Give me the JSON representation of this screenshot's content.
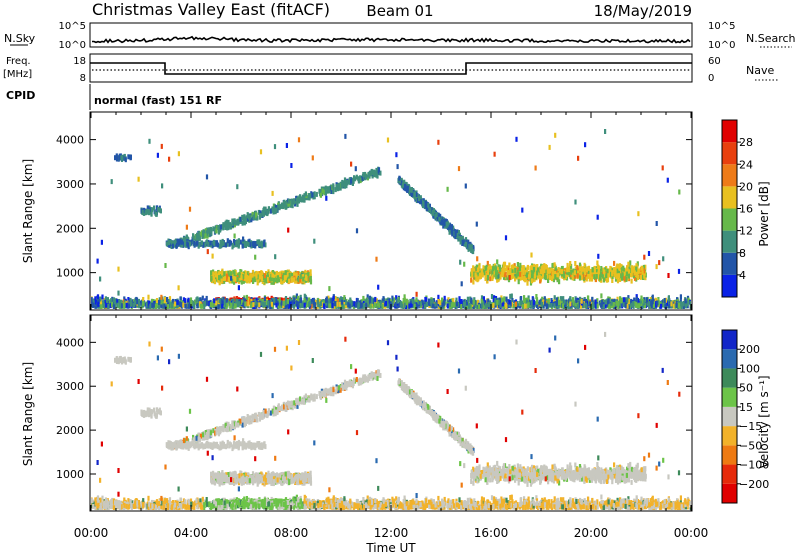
{
  "header": {
    "title": "Christmas Valley East (fitACF)",
    "beam": "Beam 01",
    "date": "18/May/2019"
  },
  "nsky_panel": {
    "left_label": "N.Sky",
    "left_ticks": [
      "10^5",
      "10^0"
    ],
    "right_ticks": [
      "10^5",
      "10^0"
    ],
    "right_label": "N.Search"
  },
  "freq_panel": {
    "left_label_1": "Freq.",
    "left_label_2": "[MHz]",
    "left_ticks": [
      "18",
      "8"
    ],
    "right_ticks": [
      "60",
      "0"
    ],
    "right_label": "Nave",
    "cpid_label": "CPID",
    "cpid_text": "normal (fast) 151 RF"
  },
  "colors": {
    "power": [
      "#0a22e6",
      "#2255a8",
      "#3f8f7c",
      "#66b84a",
      "#e8c020",
      "#ee7b18",
      "#e8400e",
      "#e00000"
    ],
    "velocity": [
      "#1226c8",
      "#2a6ab0",
      "#3d8a5a",
      "#6cc448",
      "#c8c8c0",
      "#f2b22a",
      "#ee7a12",
      "#e62a0a",
      "#e00000"
    ]
  },
  "chart_data": [
    {
      "type": "heatmap",
      "name": "power",
      "ylabel": "Slant Range [km]",
      "yticks": [
        "4000",
        "3000",
        "2000",
        "1000"
      ],
      "ylim": [
        180,
        4600
      ],
      "xlim_hours": [
        0,
        24
      ],
      "colorbar": {
        "label": "Power [dB]",
        "ticks": [
          "28",
          "24",
          "20",
          "16",
          "12",
          "8",
          "4"
        ],
        "range": [
          0,
          32
        ]
      },
      "features": [
        {
          "name": "night-band",
          "t_start": 4.8,
          "t_end": 8.8,
          "range_center": 900,
          "range_width": 150,
          "value": 17
        },
        {
          "name": "night-band",
          "t_start": 5.0,
          "t_end": 8.0,
          "range_center": 350,
          "range_width": 80,
          "value": 28
        },
        {
          "name": "rising-arc",
          "t_start": 3.2,
          "t_end": 11.6,
          "range_start": 1600,
          "range_end": 3300,
          "value": 10
        },
        {
          "name": "falling-arc",
          "t_start": 12.3,
          "t_end": 15.3,
          "range_start": 3100,
          "range_end": 1500,
          "value": 8
        },
        {
          "name": "evening-band",
          "t_start": 15.2,
          "t_end": 22.2,
          "range_center": 1000,
          "range_width": 250,
          "value": 17
        }
      ]
    },
    {
      "type": "heatmap",
      "name": "velocity",
      "ylabel": "Slant Range [km]",
      "yticks": [
        "4000",
        "3000",
        "2000",
        "1000"
      ],
      "ylim": [
        180,
        4600
      ],
      "xlabel": "Time UT",
      "xticks": [
        "00:00",
        "04:00",
        "08:00",
        "12:00",
        "16:00",
        "20:00",
        "00:00"
      ],
      "xlim_hours": [
        0,
        24
      ],
      "colorbar": {
        "label": "Velocity [m s⁻¹]",
        "ticks": [
          "200",
          "100",
          "50",
          "15",
          "−15",
          "−50",
          "−100",
          "−200"
        ]
      }
    }
  ]
}
